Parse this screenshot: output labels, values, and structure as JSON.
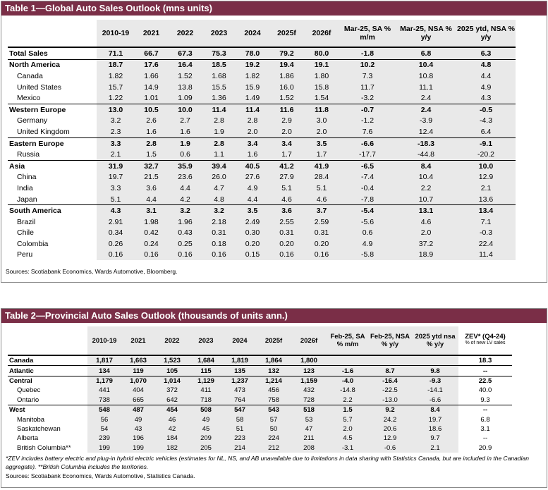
{
  "table1": {
    "title": "Table 1—Global Auto Sales Outlook (mns units)",
    "headers": [
      "2010-19",
      "2021",
      "2022",
      "2023",
      "2024",
      "2025f",
      "2026f"
    ],
    "change_headers": [
      {
        "line1": "Mar-25, SA %",
        "line2": "m/m"
      },
      {
        "line1": "Mar-25, NSA %",
        "line2": "y/y"
      },
      {
        "line1": "2025 ytd, NSA %",
        "line2": "y/y"
      }
    ],
    "groups": [
      {
        "rows": [
          {
            "label": "Total Sales",
            "vals": [
              "71.1",
              "66.7",
              "67.3",
              "75.3",
              "78.0",
              "79.2",
              "80.0"
            ],
            "chg": [
              "-1.8",
              "6.8",
              "6.3"
            ]
          }
        ]
      },
      {
        "rows": [
          {
            "label": "North America",
            "vals": [
              "18.7",
              "17.6",
              "16.4",
              "18.5",
              "19.2",
              "19.4",
              "19.1"
            ],
            "chg": [
              "10.2",
              "10.4",
              "4.8"
            ]
          },
          {
            "label": "Canada",
            "vals": [
              "1.82",
              "1.66",
              "1.52",
              "1.68",
              "1.82",
              "1.86",
              "1.80"
            ],
            "chg": [
              "7.3",
              "10.8",
              "4.4"
            ]
          },
          {
            "label": "United States",
            "vals": [
              "15.7",
              "14.9",
              "13.8",
              "15.5",
              "15.9",
              "16.0",
              "15.8"
            ],
            "chg": [
              "11.7",
              "11.1",
              "4.9"
            ]
          },
          {
            "label": "Mexico",
            "vals": [
              "1.22",
              "1.01",
              "1.09",
              "1.36",
              "1.49",
              "1.52",
              "1.54"
            ],
            "chg": [
              "-3.2",
              "2.4",
              "4.3"
            ]
          }
        ]
      },
      {
        "rows": [
          {
            "label": "Western Europe",
            "vals": [
              "13.0",
              "10.5",
              "10.0",
              "11.4",
              "11.4",
              "11.6",
              "11.8"
            ],
            "chg": [
              "-0.7",
              "2.4",
              "-0.5"
            ]
          },
          {
            "label": "Germany",
            "vals": [
              "3.2",
              "2.6",
              "2.7",
              "2.8",
              "2.8",
              "2.9",
              "3.0"
            ],
            "chg": [
              "-1.2",
              "-3.9",
              "-4.3"
            ]
          },
          {
            "label": "United Kingdom",
            "vals": [
              "2.3",
              "1.6",
              "1.6",
              "1.9",
              "2.0",
              "2.0",
              "2.0"
            ],
            "chg": [
              "7.6",
              "12.4",
              "6.4"
            ]
          }
        ]
      },
      {
        "rows": [
          {
            "label": "Eastern Europe",
            "vals": [
              "3.3",
              "2.8",
              "1.9",
              "2.8",
              "3.4",
              "3.4",
              "3.5"
            ],
            "chg": [
              "-6.6",
              "-18.3",
              "-9.1"
            ]
          },
          {
            "label": "Russia",
            "vals": [
              "2.1",
              "1.5",
              "0.6",
              "1.1",
              "1.6",
              "1.7",
              "1.7"
            ],
            "chg": [
              "-17.7",
              "-44.8",
              "-20.2"
            ]
          }
        ]
      },
      {
        "rows": [
          {
            "label": "Asia",
            "vals": [
              "31.9",
              "32.7",
              "35.9",
              "39.4",
              "40.5",
              "41.2",
              "41.9"
            ],
            "chg": [
              "-6.5",
              "8.4",
              "10.0"
            ]
          },
          {
            "label": "China",
            "vals": [
              "19.7",
              "21.5",
              "23.6",
              "26.0",
              "27.6",
              "27.9",
              "28.4"
            ],
            "chg": [
              "-7.4",
              "10.4",
              "12.9"
            ]
          },
          {
            "label": "India",
            "vals": [
              "3.3",
              "3.6",
              "4.4",
              "4.7",
              "4.9",
              "5.1",
              "5.1"
            ],
            "chg": [
              "-0.4",
              "2.2",
              "2.1"
            ]
          },
          {
            "label": "Japan",
            "vals": [
              "5.1",
              "4.4",
              "4.2",
              "4.8",
              "4.4",
              "4.6",
              "4.6"
            ],
            "chg": [
              "-7.8",
              "10.7",
              "13.6"
            ]
          }
        ]
      },
      {
        "rows": [
          {
            "label": "South America",
            "vals": [
              "4.3",
              "3.1",
              "3.2",
              "3.2",
              "3.5",
              "3.6",
              "3.7"
            ],
            "chg": [
              "-5.4",
              "13.1",
              "13.4"
            ]
          },
          {
            "label": "Brazil",
            "vals": [
              "2.91",
              "1.98",
              "1.96",
              "2.18",
              "2.49",
              "2.55",
              "2.59"
            ],
            "chg": [
              "-5.6",
              "4.6",
              "7.1"
            ]
          },
          {
            "label": "Chile",
            "vals": [
              "0.34",
              "0.42",
              "0.43",
              "0.31",
              "0.30",
              "0.31",
              "0.31"
            ],
            "chg": [
              "0.6",
              "2.0",
              "-0.3"
            ]
          },
          {
            "label": "Colombia",
            "vals": [
              "0.26",
              "0.24",
              "0.25",
              "0.18",
              "0.20",
              "0.20",
              "0.20"
            ],
            "chg": [
              "4.9",
              "37.2",
              "22.4"
            ]
          },
          {
            "label": "Peru",
            "vals": [
              "0.16",
              "0.16",
              "0.16",
              "0.16",
              "0.15",
              "0.16",
              "0.16"
            ],
            "chg": [
              "-5.8",
              "18.9",
              "11.4"
            ]
          }
        ]
      }
    ],
    "source": "Sources: Scotiabank Economics, Wards Automotive, Bloomberg."
  },
  "table2": {
    "title": "Table 2—Provincial Auto Sales Outlook (thousands of units ann.)",
    "headers": [
      "2010-19",
      "2021",
      "2022",
      "2023",
      "2024",
      "2025f",
      "2026f"
    ],
    "change_headers": [
      {
        "line1": "Feb-25, SA",
        "line2": "% m/m"
      },
      {
        "line1": "Feb-25, NSA",
        "line2": "% y/y"
      },
      {
        "line1": "2025 ytd nsa",
        "line2": "% y/y"
      },
      {
        "line1": "ZEV* (Q4-24)",
        "line2": "% of new LV sales"
      }
    ],
    "groups": [
      {
        "rows": [
          {
            "label": "Canada",
            "vals": [
              "1,817",
              "1,663",
              "1,523",
              "1,684",
              "1,819",
              "1,864",
              "1,800"
            ],
            "chg": [
              "",
              "",
              "",
              "18.3"
            ]
          }
        ]
      },
      {
        "rows": [
          {
            "label": "Atlantic",
            "vals": [
              "134",
              "119",
              "105",
              "115",
              "135",
              "132",
              "123"
            ],
            "chg": [
              "-1.6",
              "8.7",
              "9.8",
              "--"
            ]
          }
        ]
      },
      {
        "rows": [
          {
            "label": "Central",
            "vals": [
              "1,179",
              "1,070",
              "1,014",
              "1,129",
              "1,237",
              "1,214",
              "1,159"
            ],
            "chg": [
              "-4.0",
              "-16.4",
              "-9.3",
              "22.5"
            ]
          },
          {
            "label": "Quebec",
            "vals": [
              "441",
              "404",
              "372",
              "411",
              "473",
              "456",
              "432"
            ],
            "chg": [
              "-14.8",
              "-22.5",
              "-14.1",
              "40.0"
            ]
          },
          {
            "label": "Ontario",
            "vals": [
              "738",
              "665",
              "642",
              "718",
              "764",
              "758",
              "728"
            ],
            "chg": [
              "2.2",
              "-13.0",
              "-6.6",
              "9.3"
            ]
          }
        ]
      },
      {
        "rows": [
          {
            "label": "West",
            "vals": [
              "548",
              "487",
              "454",
              "508",
              "547",
              "543",
              "518"
            ],
            "chg": [
              "1.5",
              "9.2",
              "8.4",
              "--"
            ]
          },
          {
            "label": "Manitoba",
            "vals": [
              "56",
              "49",
              "46",
              "49",
              "58",
              "57",
              "53"
            ],
            "chg": [
              "5.7",
              "24.2",
              "19.7",
              "6.8"
            ]
          },
          {
            "label": "Saskatchewan",
            "vals": [
              "54",
              "43",
              "42",
              "45",
              "51",
              "50",
              "47"
            ],
            "chg": [
              "2.0",
              "20.6",
              "18.6",
              "3.1"
            ]
          },
          {
            "label": "Alberta",
            "vals": [
              "239",
              "196",
              "184",
              "209",
              "223",
              "224",
              "211"
            ],
            "chg": [
              "4.5",
              "12.9",
              "9.7",
              "--"
            ]
          },
          {
            "label": "British Columbia**",
            "vals": [
              "199",
              "199",
              "182",
              "205",
              "214",
              "212",
              "208"
            ],
            "chg": [
              "-3.1",
              "-0.6",
              "2.1",
              "20.9"
            ]
          }
        ]
      }
    ],
    "note1": "*ZEV includes battery electric and plug-in hybrid electric vehicles (estimates for NL, NS, and AB unavailable due to limitations in data sharing with Statistics Canada, but are included in the Canadian",
    "note2": "aggregate). **British Columbia includes the territories.",
    "source": "Sources: Scotiabank Economics, Wards Automotive, Statistics Canada."
  }
}
